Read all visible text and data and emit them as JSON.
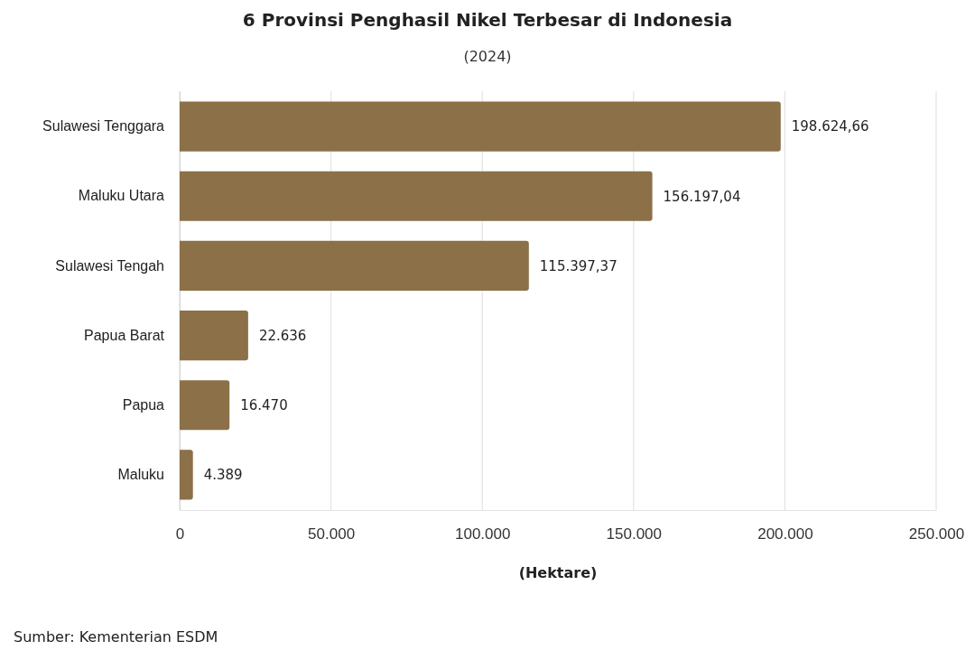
{
  "chart_data": {
    "type": "bar",
    "orientation": "horizontal",
    "title": "6 Provinsi Penghasil Nikel Terbesar di Indonesia",
    "subtitle": "(2024)",
    "xlabel": "(Hektare)",
    "categories": [
      "Sulawesi Tenggara",
      "Maluku Utara",
      "Sulawesi Tengah",
      "Papua Barat",
      "Papua",
      "Maluku"
    ],
    "values": [
      198624.66,
      156197.04,
      115397.37,
      22636,
      16470,
      4389
    ],
    "value_labels": [
      "198.624,66",
      "156.197,04",
      "115.397,37",
      "22.636",
      "16.470",
      "4.389"
    ],
    "color": "#8b7048",
    "xlim": [
      0,
      250000
    ],
    "xticks": [
      0,
      {
        "value": 50000,
        "label": "50.000"
      },
      {
        "value": 100000,
        "label": "100.000"
      },
      {
        "value": 150000,
        "label": "150.000"
      },
      {
        "value": 200000,
        "label": "200.000"
      },
      {
        "value": 250000,
        "label": "250.000"
      }
    ],
    "grid": "x",
    "annotations": [
      "Sumber: Kementerian ESDM"
    ]
  }
}
